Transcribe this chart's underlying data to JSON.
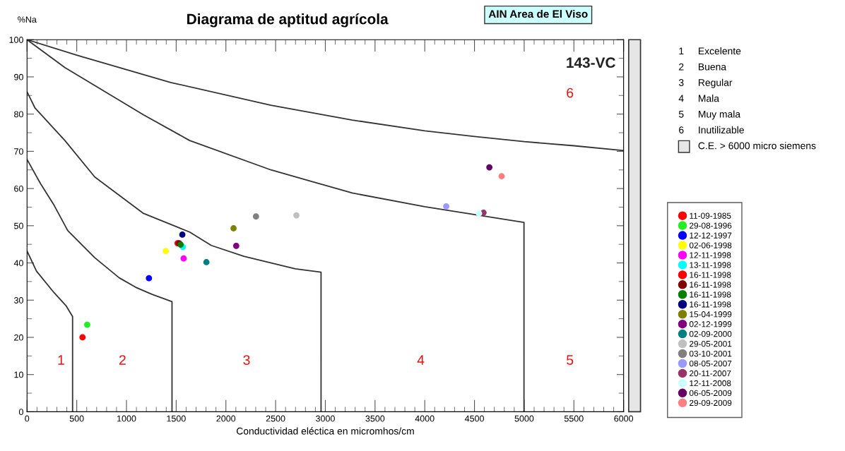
{
  "chart_data": {
    "type": "scatter",
    "title": "Diagrama de aptitud agrícola",
    "subtitle": "AIN Area de El Viso",
    "xlabel": "Conductividad eléctica en micromhos/cm",
    "ylabel": "%Na",
    "xlim": [
      0,
      6000
    ],
    "ylim": [
      0,
      100
    ],
    "xticks": [
      0,
      500,
      1000,
      1500,
      2000,
      2500,
      3000,
      3500,
      4000,
      4500,
      5000,
      5500,
      6000
    ],
    "yticks": [
      0,
      10,
      20,
      30,
      40,
      50,
      60,
      70,
      80,
      90,
      100
    ],
    "grid": false,
    "legend": "right",
    "marker": "circle",
    "annotations": [
      "1",
      "2",
      "3",
      "4",
      "5",
      "6",
      "143-VC",
      "1 Excelente",
      "2 Buena",
      "3 Regular",
      "4 Mala",
      "5 Muy mala",
      "6 Inutilizable",
      "C.E. > 6000 micro siemens"
    ],
    "series": [
      {
        "type": "line",
        "color": "#333333",
        "marker": "none",
        "x": [
          0,
          505,
          1444,
          2453,
          3270,
          4001,
          4500,
          5000,
          5500,
          6000
        ],
        "values": [
          100,
          95.8,
          88.5,
          82.4,
          78.4,
          75.5,
          74,
          72.6,
          71.5,
          70.2
        ]
      },
      {
        "type": "line",
        "color": "#333333",
        "marker": "none",
        "x": [
          0,
          381,
          1172,
          1636,
          2453,
          3270,
          4001,
          4998,
          4998
        ],
        "values": [
          100,
          92.5,
          79.8,
          72.9,
          65,
          58.8,
          55.1,
          50.9,
          0
        ]
      },
      {
        "type": "line",
        "color": "#333333",
        "marker": "none",
        "x": [
          0,
          81,
          381,
          681,
          1172,
          1635,
          1853,
          2180,
          2698,
          2957,
          2957
        ],
        "values": [
          86,
          81.6,
          72.9,
          63.1,
          53.3,
          48.3,
          44.7,
          41.8,
          38.4,
          37.5,
          0
        ]
      },
      {
        "type": "line",
        "color": "#333333",
        "marker": "none",
        "x": [
          0,
          136,
          272,
          409,
          681,
          927,
          1090,
          1254,
          1458,
          1458
        ],
        "values": [
          67.8,
          61.3,
          55.5,
          48.7,
          41.4,
          36,
          33.5,
          31.6,
          29.6,
          0
        ]
      },
      {
        "type": "line",
        "color": "#333333",
        "marker": "none",
        "x": [
          0,
          95,
          272,
          395,
          458,
          458
        ],
        "values": [
          43.2,
          37.8,
          32,
          28.4,
          25.6,
          0
        ]
      },
      {
        "name": "11-09-1985",
        "color": "#ff0000",
        "x": [
          558
        ],
        "values": [
          20.0
        ]
      },
      {
        "name": "29-08-1996",
        "color": "#22ee22",
        "x": [
          605
        ],
        "values": [
          23.4
        ]
      },
      {
        "name": "12-12-1997",
        "color": "#0000ff",
        "x": [
          1226
        ],
        "values": [
          35.9
        ]
      },
      {
        "name": "02-06-1998",
        "color": "#ffff00",
        "x": [
          1395
        ],
        "values": [
          43.2
        ]
      },
      {
        "name": "12-11-1998",
        "color": "#ff00ff",
        "x": [
          1575
        ],
        "values": [
          41.2
        ]
      },
      {
        "name": "13-11-1998",
        "color": "#00ffff",
        "x": [
          1567
        ],
        "values": [
          44.3
        ]
      },
      {
        "name": "16-11-1998",
        "color": "#ff0000",
        "x": [
          1514
        ],
        "values": [
          45.3
        ]
      },
      {
        "name": "16-11-1998",
        "color": "#800000",
        "x": [
          1530
        ],
        "values": [
          45.3
        ]
      },
      {
        "name": "16-11-1998",
        "color": "#008000",
        "x": [
          1545
        ],
        "values": [
          44.9
        ]
      },
      {
        "name": "16-11-1998",
        "color": "#000080",
        "x": [
          1562
        ],
        "values": [
          47.6
        ]
      },
      {
        "name": "15-04-1999",
        "color": "#808000",
        "x": [
          2077
        ],
        "values": [
          49.3
        ]
      },
      {
        "name": "02-12-1999",
        "color": "#800080",
        "x": [
          2104
        ],
        "values": [
          44.6
        ]
      },
      {
        "name": "02-09-2000",
        "color": "#008080",
        "x": [
          1804
        ],
        "values": [
          40.2
        ]
      },
      {
        "name": "29-05-2001",
        "color": "#c0c0c0",
        "x": [
          2709
        ],
        "values": [
          52.8
        ]
      },
      {
        "name": "03-10-2001",
        "color": "#808080",
        "x": [
          2303
        ],
        "values": [
          52.5
        ]
      },
      {
        "name": "08-05-2007",
        "color": "#9999ff",
        "x": [
          4216
        ],
        "values": [
          55.2
        ]
      },
      {
        "name": "20-11-2007",
        "color": "#993366",
        "x": [
          4591
        ],
        "values": [
          53.5
        ]
      },
      {
        "name": "12-11-2008",
        "color": "#ccffff",
        "x": [
          4546
        ],
        "values": [
          53.3
        ]
      },
      {
        "name": "06-05-2009",
        "color": "#660066",
        "x": [
          4650
        ],
        "values": [
          65.7
        ]
      },
      {
        "name": "29-09-2009",
        "color": "#ff8080",
        "x": [
          4773
        ],
        "values": [
          63.3
        ]
      }
    ]
  }
}
